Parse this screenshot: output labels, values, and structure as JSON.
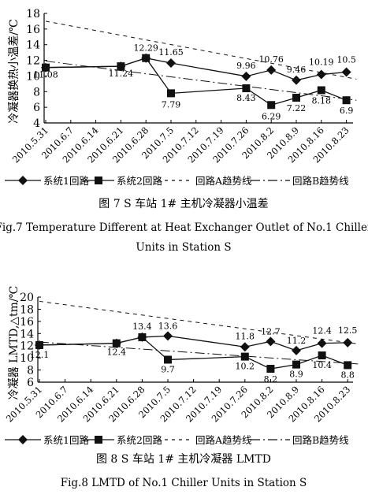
{
  "chart_data": [
    {
      "type": "line",
      "title": "图 7   S 车站 1# 主机冷凝器小温差",
      "subtitle": "Fig.7   Temperature Different at Heat Exchanger Outlet of No.1 Chiller Units in Station S",
      "ylabel": "冷凝器换热小温差/℃",
      "xlabel": "",
      "ylim": [
        4,
        18
      ],
      "yticks": [
        4,
        6,
        8,
        10,
        12,
        14,
        16,
        18
      ],
      "categories": [
        "2010.5.31",
        "2010.6.7",
        "2010.6.14",
        "2010.6.21",
        "2010.6.28",
        "2010.7.5",
        "2010.7.12",
        "2010.7.19",
        "2010.7.26",
        "2010.8.2",
        "2010.8.9",
        "2010.8.16",
        "2010.8.23"
      ],
      "legend": [
        "系统1回路",
        "系统2回路",
        "回路A趋势线",
        "回路B趋势线"
      ],
      "series": [
        {
          "name": "系统1回路",
          "marker": "diamond",
          "x": [
            0,
            3,
            4,
            5,
            8,
            9,
            10,
            11,
            12
          ],
          "values": [
            11.08,
            11.24,
            12.29,
            11.65,
            9.96,
            10.76,
            9.46,
            10.19,
            10.5
          ]
        },
        {
          "name": "系统2回路",
          "marker": "square",
          "x": [
            0,
            3,
            4,
            5,
            8,
            9,
            10,
            11,
            12
          ],
          "values": [
            11.08,
            11.24,
            12.29,
            7.79,
            8.43,
            6.29,
            7.22,
            8.18,
            6.9
          ]
        },
        {
          "name": "回路A趋势线",
          "style": "dashed",
          "x": [
            0,
            12.4
          ],
          "values": [
            17.0,
            9.6
          ]
        },
        {
          "name": "回路B趋势线",
          "style": "dashdot",
          "x": [
            0,
            12.4
          ],
          "values": [
            11.9,
            6.9
          ]
        }
      ],
      "data_labels": [
        {
          "x": 0,
          "y": 11.08,
          "text": "11.08"
        },
        {
          "x": 3,
          "y": 11.24,
          "text": "11.24"
        },
        {
          "x": 4,
          "y": 12.29,
          "text": "12.29"
        },
        {
          "x": 5,
          "y": 11.65,
          "text": "11.65"
        },
        {
          "x": 5,
          "y": 7.79,
          "text": "7.79"
        },
        {
          "x": 8,
          "y": 9.96,
          "text": "9.96"
        },
        {
          "x": 8,
          "y": 8.43,
          "text": "8.43"
        },
        {
          "x": 9,
          "y": 10.76,
          "text": "10.76"
        },
        {
          "x": 9,
          "y": 6.29,
          "text": "6.29"
        },
        {
          "x": 10,
          "y": 9.46,
          "text": "9.46"
        },
        {
          "x": 10,
          "y": 7.22,
          "text": "7.22"
        },
        {
          "x": 11,
          "y": 10.19,
          "text": "10.19"
        },
        {
          "x": 11,
          "y": 8.18,
          "text": "8.18"
        },
        {
          "x": 12,
          "y": 10.5,
          "text": "10.5"
        },
        {
          "x": 12,
          "y": 6.9,
          "text": "6.9"
        }
      ]
    },
    {
      "type": "line",
      "title": "图 8   S 车站 1# 主机冷凝器 LMTD",
      "subtitle": "Fig.8   LMTD of No.1 Chiller Units in Station S",
      "ylabel": "冷凝器 LMTD,△tm/℃",
      "xlabel": "",
      "ylim": [
        6,
        20
      ],
      "yticks": [
        6,
        8,
        10,
        12,
        14,
        16,
        18,
        20
      ],
      "categories": [
        "2010.5.31",
        "2010.6.7",
        "2010.6.14",
        "2010.6.21",
        "2010.6.28",
        "2010.7.5",
        "2010.7.12",
        "2010.7.19",
        "2010.7.26",
        "2010.8.2",
        "2010.8.9",
        "2010.8.16",
        "2010.8.23"
      ],
      "legend": [
        "系统1回路",
        "系统2回路",
        "回路A趋势线",
        "回路B趋势线"
      ],
      "series": [
        {
          "name": "系统1回路",
          "marker": "diamond",
          "x": [
            0,
            3,
            4,
            5,
            8,
            9,
            10,
            11,
            12
          ],
          "values": [
            12.1,
            12.4,
            13.4,
            13.6,
            11.8,
            12.7,
            11.2,
            12.4,
            12.5
          ]
        },
        {
          "name": "系统2回路",
          "marker": "square",
          "x": [
            0,
            3,
            4,
            5,
            8,
            9,
            10,
            11,
            12
          ],
          "values": [
            12.1,
            12.4,
            13.4,
            9.7,
            10.2,
            8.2,
            8.9,
            10.4,
            8.8
          ]
        },
        {
          "name": "回路A趋势线",
          "style": "dashed",
          "x": [
            0,
            12.4
          ],
          "values": [
            19.3,
            12.3
          ]
        },
        {
          "name": "回路B趋势线",
          "style": "dashdot",
          "x": [
            0,
            12.4
          ],
          "values": [
            12.6,
            9.0
          ]
        }
      ],
      "data_labels": [
        {
          "x": 0,
          "y": 12.1,
          "text": "12.1"
        },
        {
          "x": 3,
          "y": 12.4,
          "text": "12.4"
        },
        {
          "x": 4,
          "y": 13.4,
          "text": "13.4"
        },
        {
          "x": 5,
          "y": 13.6,
          "text": "13.6"
        },
        {
          "x": 5,
          "y": 9.7,
          "text": "9.7"
        },
        {
          "x": 8,
          "y": 11.8,
          "text": "11.8"
        },
        {
          "x": 8,
          "y": 10.2,
          "text": "10.2"
        },
        {
          "x": 9,
          "y": 12.7,
          "text": "12.7"
        },
        {
          "x": 9,
          "y": 8.2,
          "text": "8.2"
        },
        {
          "x": 10,
          "y": 11.2,
          "text": "11.2"
        },
        {
          "x": 10,
          "y": 8.9,
          "text": "8.9"
        },
        {
          "x": 11,
          "y": 12.4,
          "text": "12.4"
        },
        {
          "x": 11,
          "y": 10.4,
          "text": "10.4"
        },
        {
          "x": 12,
          "y": 12.5,
          "text": "12.5"
        },
        {
          "x": 12,
          "y": 8.8,
          "text": "8.8"
        }
      ]
    }
  ]
}
